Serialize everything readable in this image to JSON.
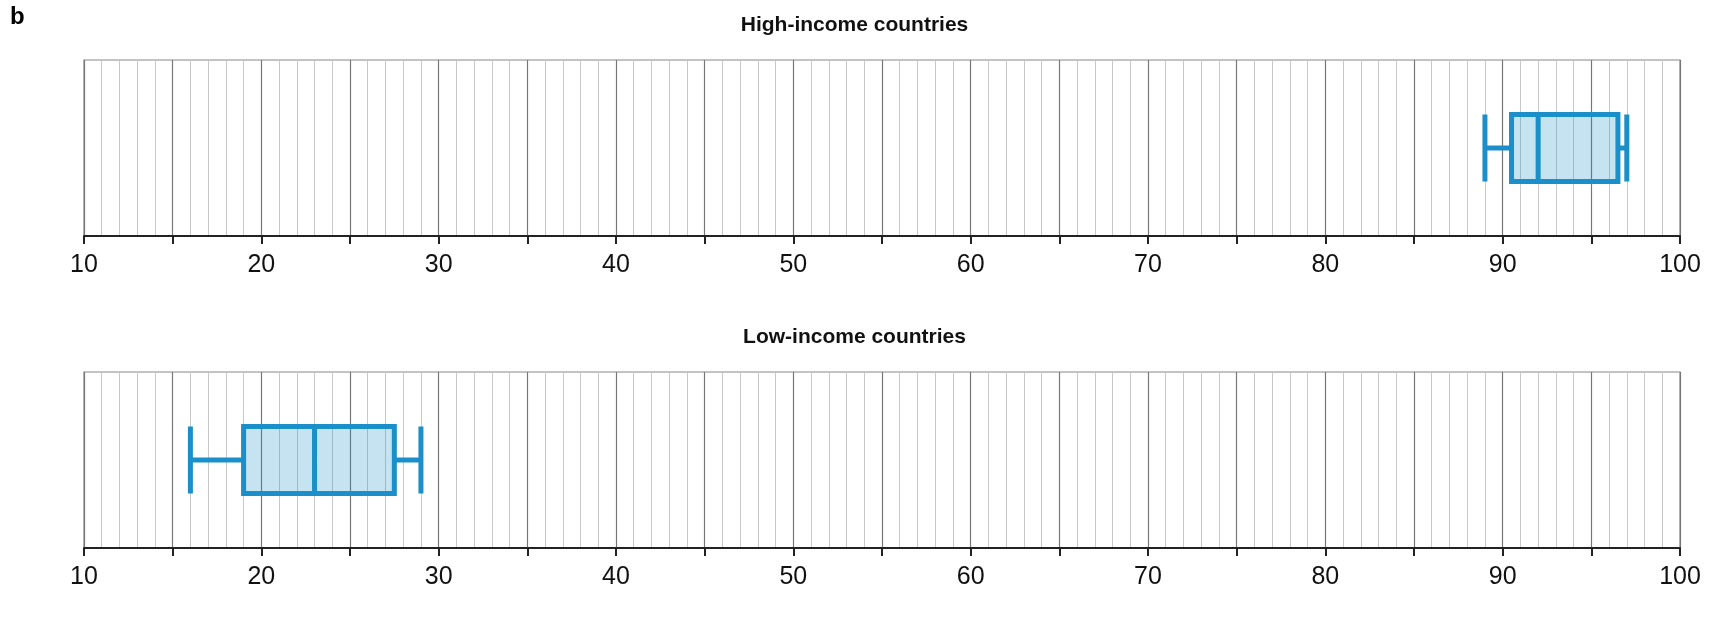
{
  "chart_data": [
    {
      "type": "box",
      "title": "High-income countries",
      "annotations": [
        "b"
      ],
      "orientation": "horizontal",
      "categories": [
        null
      ],
      "series": [
        {
          "color": "#1b8fc9",
          "boxes": [
            {
              "low": 89,
              "q1": 90.5,
              "median": 92,
              "q3": 96.5,
              "high": 97
            }
          ]
        }
      ],
      "xlim": [
        10,
        100
      ],
      "xticks": [
        10,
        {
          "value": 15,
          "label": null
        },
        20,
        {
          "value": 25,
          "label": null
        },
        30,
        {
          "value": 35,
          "label": null
        },
        40,
        {
          "value": 45,
          "label": null
        },
        50,
        {
          "value": 55,
          "label": null
        },
        60,
        {
          "value": 65,
          "label": null
        },
        70,
        {
          "value": 75,
          "label": null
        },
        80,
        {
          "value": 85,
          "label": null
        },
        90,
        {
          "value": 95,
          "label": null
        },
        100
      ],
      "grid": true
    },
    {
      "type": "box",
      "title": "Low-income countries",
      "orientation": "horizontal",
      "categories": [
        null
      ],
      "series": [
        {
          "color": "#1b8fc9",
          "boxes": [
            {
              "low": 16,
              "q1": 19,
              "median": 23,
              "q3": 27.5,
              "high": 29
            }
          ]
        }
      ],
      "xlim": [
        10,
        100
      ],
      "xticks": [
        10,
        {
          "value": 15,
          "label": null
        },
        20,
        {
          "value": 25,
          "label": null
        },
        30,
        {
          "value": 35,
          "label": null
        },
        40,
        {
          "value": 45,
          "label": null
        },
        50,
        {
          "value": 55,
          "label": null
        },
        60,
        {
          "value": 65,
          "label": null
        },
        70,
        {
          "value": 75,
          "label": null
        },
        80,
        {
          "value": 85,
          "label": null
        },
        90,
        {
          "value": 95,
          "label": null
        },
        100
      ],
      "grid": true
    }
  ]
}
